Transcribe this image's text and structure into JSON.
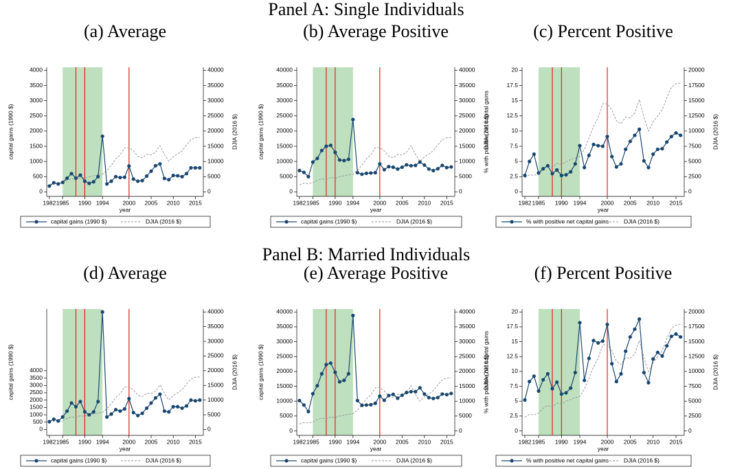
{
  "panel_titles": [
    "Panel A: Single Individuals",
    "Panel B: Married Individuals"
  ],
  "chart_data": [
    {
      "type": "line",
      "title": "(a) Average",
      "xlabel": "year",
      "ylabel": "capital gains (1990 $)",
      "y2label": "DJIA (2016 $)",
      "x": [
        1982,
        1983,
        1984,
        1985,
        1986,
        1987,
        1988,
        1989,
        1990,
        1991,
        1992,
        1993,
        1994,
        1995,
        1996,
        1997,
        1998,
        1999,
        2000,
        2001,
        2002,
        2003,
        2004,
        2005,
        2006,
        2007,
        2008,
        2009,
        2010,
        2011,
        2012,
        2013,
        2014,
        2015,
        2016
      ],
      "xlim": [
        1981.4,
        2016.8
      ],
      "xticks": [
        1982,
        1985,
        1990,
        1994,
        2000,
        2005,
        2010,
        2015
      ],
      "ylim": [
        -150,
        4100
      ],
      "yticks": [
        0,
        500,
        1000,
        1500,
        2000,
        2500,
        3000,
        3500,
        4000
      ],
      "y2lim": [
        -1500,
        41000
      ],
      "y2ticks": [
        0,
        5000,
        10000,
        15000,
        20000,
        25000,
        30000,
        35000,
        40000
      ],
      "shade": [
        1985,
        1994
      ],
      "shade_color": "#bfe0bf",
      "vlines": [
        1988,
        1990,
        2000
      ],
      "vline_color": "#e0201b",
      "series": [
        {
          "name": "capital gains (1990 $)",
          "color": "#1a476f",
          "axis": "y",
          "values": [
            190,
            300,
            260,
            310,
            450,
            600,
            450,
            550,
            350,
            280,
            330,
            500,
            1830,
            260,
            350,
            500,
            470,
            480,
            850,
            420,
            350,
            370,
            520,
            680,
            860,
            920,
            440,
            400,
            540,
            530,
            500,
            600,
            790,
            790,
            790
          ]
        },
        {
          "name": "DJIA (2016 $)",
          "color": "#909090",
          "axis": "y2",
          "dashed": true,
          "values": [
            2300,
            2800,
            2700,
            3000,
            3800,
            4300,
            4000,
            4700,
            4500,
            5000,
            5300,
            5600,
            5800,
            7000,
            8800,
            10800,
            12200,
            14500,
            14500,
            13500,
            11700,
            11200,
            12300,
            12200,
            13000,
            15200,
            12300,
            10000,
            11500,
            12500,
            13500,
            15500,
            17200,
            17800,
            17900
          ]
        }
      ]
    },
    {
      "type": "line",
      "title": "(b) Average Positive",
      "xlabel": "year",
      "ylabel": "capital gains (1990 $)",
      "y2label": "DJIA (2016 $)",
      "x": [
        1982,
        1983,
        1984,
        1985,
        1986,
        1987,
        1988,
        1989,
        1990,
        1991,
        1992,
        1993,
        1994,
        1995,
        1996,
        1997,
        1998,
        1999,
        2000,
        2001,
        2002,
        2003,
        2004,
        2005,
        2006,
        2007,
        2008,
        2009,
        2010,
        2011,
        2012,
        2013,
        2014,
        2015,
        2016
      ],
      "xlim": [
        1981.4,
        2016.8
      ],
      "xticks": [
        1982,
        1985,
        1990,
        1994,
        2000,
        2005,
        2010,
        2015
      ],
      "ylim": [
        -1500,
        41000
      ],
      "yticks": [
        0,
        5000,
        10000,
        15000,
        20000,
        25000,
        30000,
        35000,
        40000
      ],
      "y2lim": [
        -1500,
        41000
      ],
      "y2ticks": [
        0,
        5000,
        10000,
        15000,
        20000,
        25000,
        30000,
        35000,
        40000
      ],
      "shade": [
        1985,
        1994
      ],
      "shade_color": "#bfe0bf",
      "vlines": [
        1988,
        1990,
        2000
      ],
      "vline_color": "#e0201b",
      "series": [
        {
          "name": "capital gains (1990 $)",
          "color": "#1a476f",
          "axis": "y",
          "values": [
            7000,
            6400,
            5000,
            9800,
            11000,
            13600,
            15000,
            15300,
            13000,
            10500,
            10300,
            10700,
            23800,
            6300,
            5800,
            6100,
            6200,
            6300,
            9200,
            7300,
            8300,
            8100,
            7500,
            8100,
            8900,
            8600,
            8700,
            9800,
            8800,
            7500,
            7000,
            7600,
            8700,
            8000,
            8200
          ]
        },
        {
          "name": "DJIA (2016 $)",
          "color": "#909090",
          "axis": "y2",
          "dashed": true,
          "values": [
            2300,
            2800,
            2700,
            3000,
            3800,
            4300,
            4000,
            4700,
            4500,
            5000,
            5300,
            5600,
            5800,
            7000,
            8800,
            10800,
            12200,
            14500,
            14500,
            13500,
            11700,
            11200,
            12300,
            12200,
            13000,
            15200,
            12300,
            10000,
            11500,
            12500,
            13500,
            15500,
            17200,
            17800,
            17900
          ]
        }
      ]
    },
    {
      "type": "line",
      "title": "(c) Percent Positive",
      "xlabel": "year",
      "ylabel": "% with positive net capital gains",
      "y2label": "DJIA (2016 $)",
      "x": [
        1982,
        1983,
        1984,
        1985,
        1986,
        1987,
        1988,
        1989,
        1990,
        1991,
        1992,
        1993,
        1994,
        1995,
        1996,
        1997,
        1998,
        1999,
        2000,
        2001,
        2002,
        2003,
        2004,
        2005,
        2006,
        2007,
        2008,
        2009,
        2010,
        2011,
        2012,
        2013,
        2014,
        2015,
        2016
      ],
      "xlim": [
        1981.4,
        2016.8
      ],
      "xticks": [
        1982,
        1985,
        1990,
        1994,
        2000,
        2005,
        2010,
        2015
      ],
      "ylim": [
        -0.75,
        20.5
      ],
      "yticks": [
        0,
        2.5,
        5,
        7.5,
        10,
        12.5,
        15,
        17.5,
        20
      ],
      "y2lim": [
        -750,
        20500
      ],
      "y2ticks": [
        0,
        2500,
        5000,
        7500,
        10000,
        12500,
        15000,
        17500,
        20000
      ],
      "shade": [
        1985,
        1994
      ],
      "shade_color": "#bfe0bf",
      "vlines": [
        1988,
        1990,
        2000
      ],
      "vline_color": "#e0201b",
      "series": [
        {
          "name": "% with positive net capital gains",
          "color": "#1a476f",
          "axis": "y",
          "values": [
            2.7,
            5.0,
            6.2,
            3.1,
            3.8,
            4.3,
            3.0,
            3.6,
            2.7,
            2.8,
            3.3,
            4.6,
            7.6,
            4.0,
            6.0,
            7.8,
            7.6,
            7.5,
            9.1,
            5.8,
            4.1,
            4.6,
            7.0,
            8.3,
            9.3,
            10.3,
            5.1,
            4.0,
            6.2,
            7.0,
            7.1,
            8.2,
            9.1,
            9.7,
            9.3
          ]
        },
        {
          "name": "DJIA (2016 $)",
          "color": "#909090",
          "axis": "y2",
          "dashed": true,
          "values": [
            2300,
            2800,
            2700,
            3000,
            3800,
            4300,
            4000,
            4700,
            4500,
            5000,
            5300,
            5600,
            5800,
            7000,
            8800,
            10800,
            12200,
            14500,
            14500,
            13500,
            11700,
            11200,
            12300,
            12200,
            13000,
            15200,
            12300,
            10000,
            11500,
            12500,
            13500,
            15500,
            17200,
            17800,
            17900
          ]
        }
      ]
    },
    {
      "type": "line",
      "title": "(d) Average",
      "xlabel": "year",
      "ylabel": "capital gains (1990 $)",
      "y2label": "DJIA (2016 $)",
      "x": [
        1982,
        1983,
        1984,
        1985,
        1986,
        1987,
        1988,
        1989,
        1990,
        1991,
        1992,
        1993,
        1994,
        1995,
        1996,
        1997,
        1998,
        1999,
        2000,
        2001,
        2002,
        2003,
        2004,
        2005,
        2006,
        2007,
        2008,
        2009,
        2010,
        2011,
        2012,
        2013,
        2014,
        2015,
        2016
      ],
      "xlim": [
        1981.4,
        2016.8
      ],
      "xticks": [
        1982,
        1985,
        1990,
        1994,
        2000,
        2005,
        2010,
        2015
      ],
      "ylim": [
        -400,
        8200
      ],
      "yticks": [
        0,
        500,
        1000,
        1500,
        2000,
        2500,
        3000,
        3500,
        4000
      ],
      "y2lim": [
        -2000,
        41000
      ],
      "y2ticks": [
        0,
        5000,
        10000,
        15000,
        20000,
        25000,
        30000,
        35000,
        40000
      ],
      "shade": [
        1985,
        1994
      ],
      "shade_color": "#bfe0bf",
      "vlines": [
        1988,
        1990,
        2000
      ],
      "vline_color": "#e0201b",
      "series": [
        {
          "name": "capital gains (1990 $)",
          "color": "#1a476f",
          "axis": "y",
          "values": [
            530,
            700,
            580,
            850,
            1250,
            1800,
            1550,
            1900,
            1200,
            1000,
            1200,
            1900,
            8000,
            850,
            1050,
            1350,
            1250,
            1400,
            2100,
            1150,
            950,
            1100,
            1450,
            1800,
            2150,
            2400,
            1250,
            1200,
            1550,
            1550,
            1450,
            1600,
            2000,
            1950,
            2000
          ]
        },
        {
          "name": "DJIA (2016 $)",
          "color": "#909090",
          "axis": "y2",
          "dashed": true,
          "values": [
            2300,
            2800,
            2700,
            3000,
            3800,
            4300,
            4000,
            4700,
            4500,
            5000,
            5300,
            5600,
            5800,
            7000,
            8800,
            10800,
            12200,
            14500,
            14500,
            13500,
            11700,
            11200,
            12300,
            12200,
            13000,
            15200,
            12300,
            10000,
            11500,
            12500,
            13500,
            15500,
            17200,
            17800,
            17900
          ]
        }
      ]
    },
    {
      "type": "line",
      "title": "(e) Average Positive",
      "xlabel": "year",
      "ylabel": "capital gains (1990 $)",
      "y2label": "DJIA (2016 $)",
      "x": [
        1982,
        1983,
        1984,
        1985,
        1986,
        1987,
        1988,
        1989,
        1990,
        1991,
        1992,
        1993,
        1994,
        1995,
        1996,
        1997,
        1998,
        1999,
        2000,
        2001,
        2002,
        2003,
        2004,
        2005,
        2006,
        2007,
        2008,
        2009,
        2010,
        2011,
        2012,
        2013,
        2014,
        2015,
        2016
      ],
      "xlim": [
        1981.4,
        2016.8
      ],
      "xticks": [
        1982,
        1985,
        1990,
        1994,
        2000,
        2005,
        2010,
        2015
      ],
      "ylim": [
        -1500,
        41000
      ],
      "yticks": [
        0,
        5000,
        10000,
        15000,
        20000,
        25000,
        30000,
        35000,
        40000
      ],
      "y2lim": [
        -1500,
        41000
      ],
      "y2ticks": [
        0,
        5000,
        10000,
        15000,
        20000,
        25000,
        30000,
        35000,
        40000
      ],
      "shade": [
        1985,
        1994
      ],
      "shade_color": "#bfe0bf",
      "vlines": [
        1988,
        1990,
        2000
      ],
      "vline_color": "#e0201b",
      "series": [
        {
          "name": "capital gains (1990 $)",
          "color": "#1a476f",
          "axis": "y",
          "values": [
            10200,
            8700,
            6500,
            12500,
            15200,
            19200,
            22300,
            22800,
            19700,
            16500,
            17000,
            19200,
            38800,
            10200,
            8600,
            8700,
            8800,
            9300,
            11700,
            10300,
            11900,
            12300,
            11000,
            12000,
            12900,
            13200,
            13200,
            14500,
            12400,
            11200,
            10900,
            11200,
            12400,
            12200,
            12600
          ]
        },
        {
          "name": "DJIA (2016 $)",
          "color": "#909090",
          "axis": "y2",
          "dashed": true,
          "values": [
            2300,
            2800,
            2700,
            3000,
            3800,
            4300,
            4000,
            4700,
            4500,
            5000,
            5300,
            5600,
            5800,
            7000,
            8800,
            10800,
            12200,
            14500,
            14500,
            13500,
            11700,
            11200,
            12300,
            12200,
            13000,
            15200,
            12300,
            10000,
            11500,
            12500,
            13500,
            15500,
            17200,
            17800,
            17900
          ]
        }
      ]
    },
    {
      "type": "line",
      "title": "(f) Percent Positive",
      "xlabel": "year",
      "ylabel": "% with positive net capital gains",
      "y2label": "DJIA (2016 $)",
      "x": [
        1982,
        1983,
        1984,
        1985,
        1986,
        1987,
        1988,
        1989,
        1990,
        1991,
        1992,
        1993,
        1994,
        1995,
        1996,
        1997,
        1998,
        1999,
        2000,
        2001,
        2002,
        2003,
        2004,
        2005,
        2006,
        2007,
        2008,
        2009,
        2010,
        2011,
        2012,
        2013,
        2014,
        2015,
        2016
      ],
      "xlim": [
        1981.4,
        2016.8
      ],
      "xticks": [
        1982,
        1985,
        1990,
        1994,
        2000,
        2005,
        2010,
        2015
      ],
      "ylim": [
        -0.75,
        20.5
      ],
      "yticks": [
        0,
        2.5,
        5,
        7.5,
        10,
        12.5,
        15,
        17.5,
        20
      ],
      "y2lim": [
        -750,
        20500
      ],
      "y2ticks": [
        0,
        2500,
        5000,
        7500,
        10000,
        12500,
        15000,
        17500,
        20000
      ],
      "shade": [
        1985,
        1994
      ],
      "shade_color": "#bfe0bf",
      "vlines": [
        1988,
        1990,
        2000
      ],
      "vline_color": "#e0201b",
      "series": [
        {
          "name": "% with positive net capital gains",
          "color": "#1a476f",
          "axis": "y",
          "values": [
            5.2,
            8.3,
            9.2,
            6.7,
            8.6,
            9.6,
            7.1,
            8.2,
            6.2,
            6.4,
            7.2,
            9.8,
            18.2,
            8.5,
            12.2,
            15.2,
            14.8,
            15.1,
            17.9,
            11.3,
            8.3,
            9.6,
            13.4,
            15.8,
            17.1,
            18.8,
            9.8,
            8.1,
            12.1,
            13.2,
            12.6,
            14.3,
            15.9,
            16.3,
            15.8
          ]
        },
        {
          "name": "DJIA (2016 $)",
          "color": "#909090",
          "axis": "y2",
          "dashed": true,
          "values": [
            2300,
            2800,
            2700,
            3000,
            3800,
            4300,
            4000,
            4700,
            4500,
            5000,
            5300,
            5600,
            5800,
            7000,
            8800,
            10800,
            12200,
            14500,
            14500,
            13500,
            11700,
            11200,
            12300,
            12200,
            13000,
            15200,
            12300,
            10000,
            11500,
            12500,
            13500,
            15500,
            17200,
            17800,
            17900
          ]
        }
      ]
    }
  ]
}
